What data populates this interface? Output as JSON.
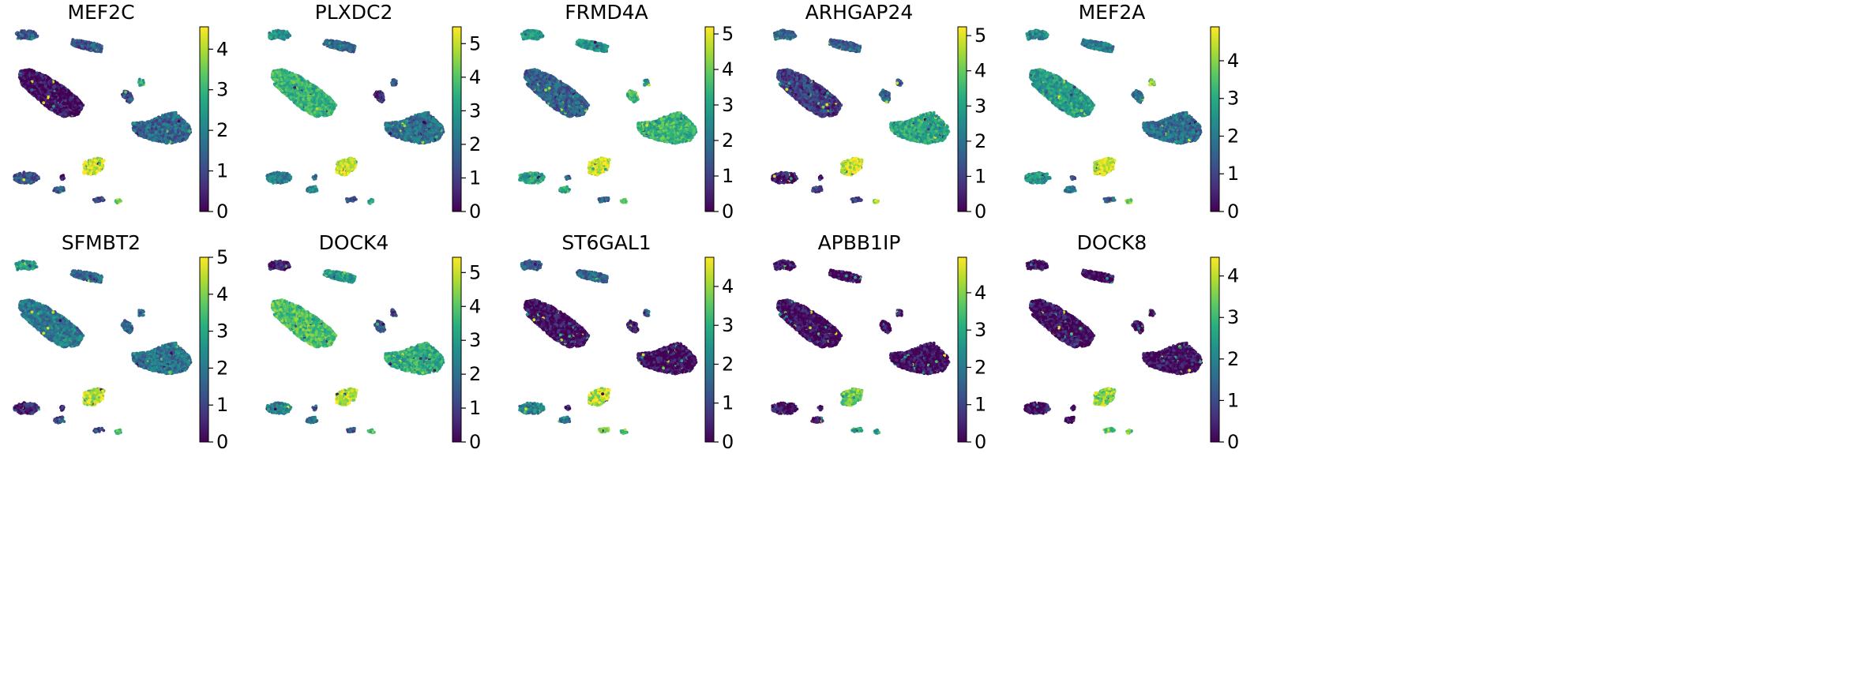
{
  "chart_data": [
    {
      "type": "scatter",
      "title": "MEF2C",
      "colorbar": {
        "ticks": [
          0,
          1,
          2,
          3,
          4
        ],
        "vmax": 4.55
      },
      "cluster_levels": [
        1.3,
        1.2,
        0.1,
        1.1,
        2.9,
        1.5,
        1.3,
        1.4,
        0.3,
        4.3,
        1.0,
        3.5
      ]
    },
    {
      "type": "scatter",
      "title": "PLXDC2",
      "colorbar": {
        "ticks": [
          0,
          1,
          2,
          3,
          4,
          5
        ],
        "vmax": 5.5
      },
      "cluster_levels": [
        2.8,
        1.8,
        3.6,
        0.6,
        1.4,
        2.0,
        2.3,
        2.5,
        1.8,
        5.1,
        1.5,
        3.3
      ]
    },
    {
      "type": "scatter",
      "title": "FRMD4A",
      "colorbar": {
        "ticks": [
          0,
          1,
          2,
          3,
          4,
          5
        ],
        "vmax": 5.2
      },
      "cluster_levels": [
        2.9,
        2.6,
        1.6,
        3.5,
        2.8,
        3.4,
        3.0,
        3.3,
        1.3,
        4.9,
        1.4,
        3.5
      ]
    },
    {
      "type": "scatter",
      "title": "ARHGAP24",
      "colorbar": {
        "ticks": [
          0,
          1,
          2,
          3,
          4,
          5
        ],
        "vmax": 5.25
      },
      "cluster_levels": [
        1.8,
        1.6,
        0.9,
        1.9,
        1.4,
        3.1,
        0.3,
        1.0,
        0.5,
        4.9,
        0.8,
        4.5
      ]
    },
    {
      "type": "scatter",
      "title": "MEF2A",
      "colorbar": {
        "ticks": [
          0,
          1,
          2,
          3,
          4
        ],
        "vmax": 4.9
      },
      "cluster_levels": [
        2.3,
        2.1,
        2.7,
        1.9,
        4.0,
        1.8,
        2.5,
        2.2,
        1.0,
        4.6,
        1.5,
        3.9
      ]
    },
    {
      "type": "scatter",
      "title": "SFMBT2",
      "colorbar": {
        "ticks": [
          0,
          1,
          2,
          3,
          4,
          5
        ],
        "vmax": 5.0
      },
      "cluster_levels": [
        2.6,
        1.7,
        2.0,
        1.6,
        1.8,
        1.9,
        0.6,
        1.1,
        0.5,
        4.5,
        1.2,
        3.4
      ]
    },
    {
      "type": "scatter",
      "title": "DOCK4",
      "colorbar": {
        "ticks": [
          0,
          1,
          2,
          3,
          4,
          5
        ],
        "vmax": 5.45
      },
      "cluster_levels": [
        0.4,
        3.0,
        3.9,
        1.5,
        0.8,
        3.4,
        2.5,
        2.0,
        1.2,
        4.9,
        1.3,
        4.0
      ]
    },
    {
      "type": "scatter",
      "title": "ST6GAL1",
      "colorbar": {
        "ticks": [
          0,
          1,
          2,
          3,
          4
        ],
        "vmax": 4.75
      },
      "cluster_levels": [
        1.4,
        1.5,
        0.1,
        0.1,
        1.5,
        0.1,
        2.1,
        2.0,
        0.3,
        4.3,
        3.8,
        3.6
      ]
    },
    {
      "type": "scatter",
      "title": "APBB1IP",
      "colorbar": {
        "ticks": [
          0,
          1,
          2,
          3,
          4
        ],
        "vmax": 4.95
      },
      "cluster_levels": [
        0.1,
        0.1,
        0.1,
        0.1,
        0.2,
        0.1,
        0.1,
        0.1,
        0.1,
        3.8,
        2.8,
        3.0
      ]
    },
    {
      "type": "scatter",
      "title": "DOCK8",
      "colorbar": {
        "ticks": [
          0,
          1,
          2,
          3,
          4
        ],
        "vmax": 4.45
      },
      "cluster_levels": [
        0.1,
        0.1,
        0.1,
        0.1,
        0.2,
        0.1,
        0.1,
        0.1,
        0.1,
        3.7,
        3.3,
        3.4
      ]
    }
  ]
}
